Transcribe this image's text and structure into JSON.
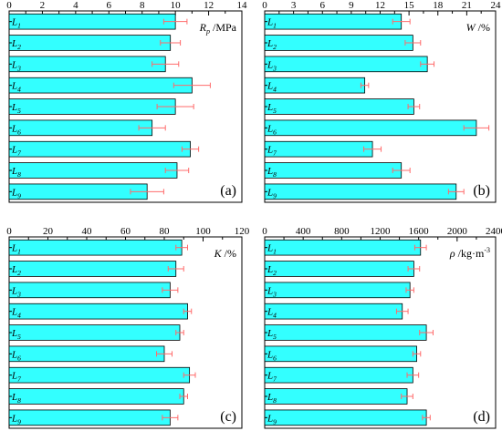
{
  "colors": {
    "bar_fill": "#33ffff",
    "bar_stroke": "#000000",
    "error_bar": "#ff6b6b"
  },
  "chart_data": [
    {
      "type": "bar",
      "orientation": "horizontal",
      "panel_label": "(a)",
      "categories": [
        "L",
        "L",
        "L",
        "L",
        "L",
        "L",
        "L",
        "L",
        "L"
      ],
      "category_subscripts": [
        "1",
        "2",
        "3",
        "4",
        "5",
        "6",
        "7",
        "8",
        "9"
      ],
      "values": [
        10.0,
        9.7,
        9.4,
        11.0,
        10.0,
        8.6,
        10.9,
        10.1,
        8.3
      ],
      "errors": [
        0.7,
        0.6,
        0.8,
        1.1,
        1.1,
        0.8,
        0.5,
        0.7,
        1.0
      ],
      "xlim": [
        0,
        14
      ],
      "ticks": [
        0,
        2,
        4,
        6,
        8,
        10,
        12,
        14
      ],
      "tick_labels": [
        "0",
        "2",
        "4",
        "6",
        "8",
        "10",
        "12",
        "14"
      ],
      "xlabel": {
        "symbol": "R",
        "subscript": "p",
        "unit": " /MPa"
      }
    },
    {
      "type": "bar",
      "orientation": "horizontal",
      "panel_label": "(b)",
      "categories": [
        "L",
        "L",
        "L",
        "L",
        "L",
        "L",
        "L",
        "L",
        "L"
      ],
      "category_subscripts": [
        "1",
        "2",
        "3",
        "4",
        "5",
        "6",
        "7",
        "8",
        "9"
      ],
      "values": [
        14.2,
        15.4,
        16.9,
        10.4,
        15.5,
        22.0,
        11.2,
        14.2,
        19.9
      ],
      "errors": [
        0.9,
        0.8,
        0.7,
        0.4,
        0.6,
        1.3,
        0.9,
        0.9,
        0.8
      ],
      "xlim": [
        0,
        24
      ],
      "ticks": [
        0,
        3,
        6,
        9,
        12,
        15,
        18,
        21,
        24
      ],
      "tick_labels": [
        "0",
        "3",
        "6",
        "9",
        "12",
        "15",
        "18",
        "21",
        "24"
      ],
      "xlabel": {
        "symbol": "W",
        "subscript": "",
        "unit": " /%"
      }
    },
    {
      "type": "bar",
      "orientation": "horizontal",
      "panel_label": "(c)",
      "categories": [
        "L",
        "L",
        "L",
        "L",
        "L",
        "L",
        "L",
        "L",
        "L"
      ],
      "category_subscripts": [
        "1",
        "2",
        "3",
        "4",
        "5",
        "6",
        "7",
        "8",
        "9"
      ],
      "values": [
        89,
        86,
        83,
        92,
        88,
        80,
        93,
        90,
        83
      ],
      "errors": [
        3,
        4,
        4,
        2,
        2,
        4,
        3,
        2,
        4
      ],
      "xlim": [
        0,
        120
      ],
      "ticks": [
        0,
        20,
        40,
        60,
        80,
        100,
        120
      ],
      "tick_labels": [
        "0",
        "20",
        "40",
        "60",
        "80",
        "100",
        "120"
      ],
      "xlabel": {
        "symbol": "K",
        "subscript": "",
        "unit": " /%"
      }
    },
    {
      "type": "bar",
      "orientation": "horizontal",
      "panel_label": "(d)",
      "categories": [
        "L",
        "L",
        "L",
        "L",
        "L",
        "L",
        "L",
        "L",
        "L"
      ],
      "category_subscripts": [
        "1",
        "2",
        "3",
        "4",
        "5",
        "6",
        "7",
        "8",
        "9"
      ],
      "values": [
        1620,
        1550,
        1510,
        1430,
        1680,
        1580,
        1540,
        1480,
        1680
      ],
      "errors": [
        60,
        60,
        40,
        60,
        70,
        40,
        60,
        60,
        40
      ],
      "xlim": [
        0,
        2400
      ],
      "ticks": [
        0,
        400,
        800,
        1200,
        1600,
        2000,
        2400
      ],
      "tick_labels": [
        "0",
        "400",
        "800",
        "1200",
        "1600",
        "2000",
        "2400"
      ],
      "xlabel": {
        "symbol": "ρ",
        "subscript": "",
        "unit": " /kg·m",
        "superscript": "-3"
      }
    }
  ]
}
